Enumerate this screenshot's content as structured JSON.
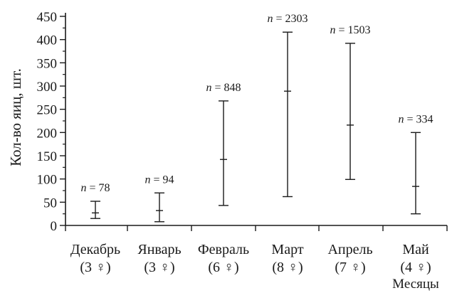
{
  "chart_data": {
    "type": "range",
    "ylabel": "Кол-во яиц, шт.",
    "xlabel": "Месяцы",
    "ylim": [
      0,
      450
    ],
    "yticks": [
      0,
      50,
      100,
      150,
      200,
      250,
      300,
      350,
      400,
      450
    ],
    "yticks_text": [
      "0",
      "50",
      "100",
      "150",
      "200",
      "250",
      "300",
      "350",
      "400",
      "450"
    ],
    "categories": [
      {
        "name": "Декабрь",
        "sub": "(3 ♀)",
        "n_prefix": "n",
        "n_text": " = 78",
        "min": 15,
        "mean": 27,
        "max": 52
      },
      {
        "name": "Январь",
        "sub": "(3 ♀)",
        "n_prefix": "n",
        "n_text": " = 94",
        "min": 8,
        "mean": 32,
        "max": 70
      },
      {
        "name": "Февраль",
        "sub": "(6 ♀)",
        "n_prefix": "n",
        "n_text": " = 848",
        "min": 43,
        "mean": 142,
        "max": 268
      },
      {
        "name": "Март",
        "sub": "(8 ♀)",
        "n_prefix": "n",
        "n_text": " = 2303",
        "min": 62,
        "mean": 289,
        "max": 416
      },
      {
        "name": "Апрель",
        "sub": "(7 ♀)",
        "n_prefix": "n",
        "n_text": " = 1503",
        "min": 99,
        "mean": 216,
        "max": 392
      },
      {
        "name": "Май",
        "sub": "(4 ♀)",
        "n_prefix": "n",
        "n_text": " = 334",
        "min": 25,
        "mean": 84,
        "max": 200
      }
    ],
    "grid": false,
    "color": "#1a1a1a"
  }
}
